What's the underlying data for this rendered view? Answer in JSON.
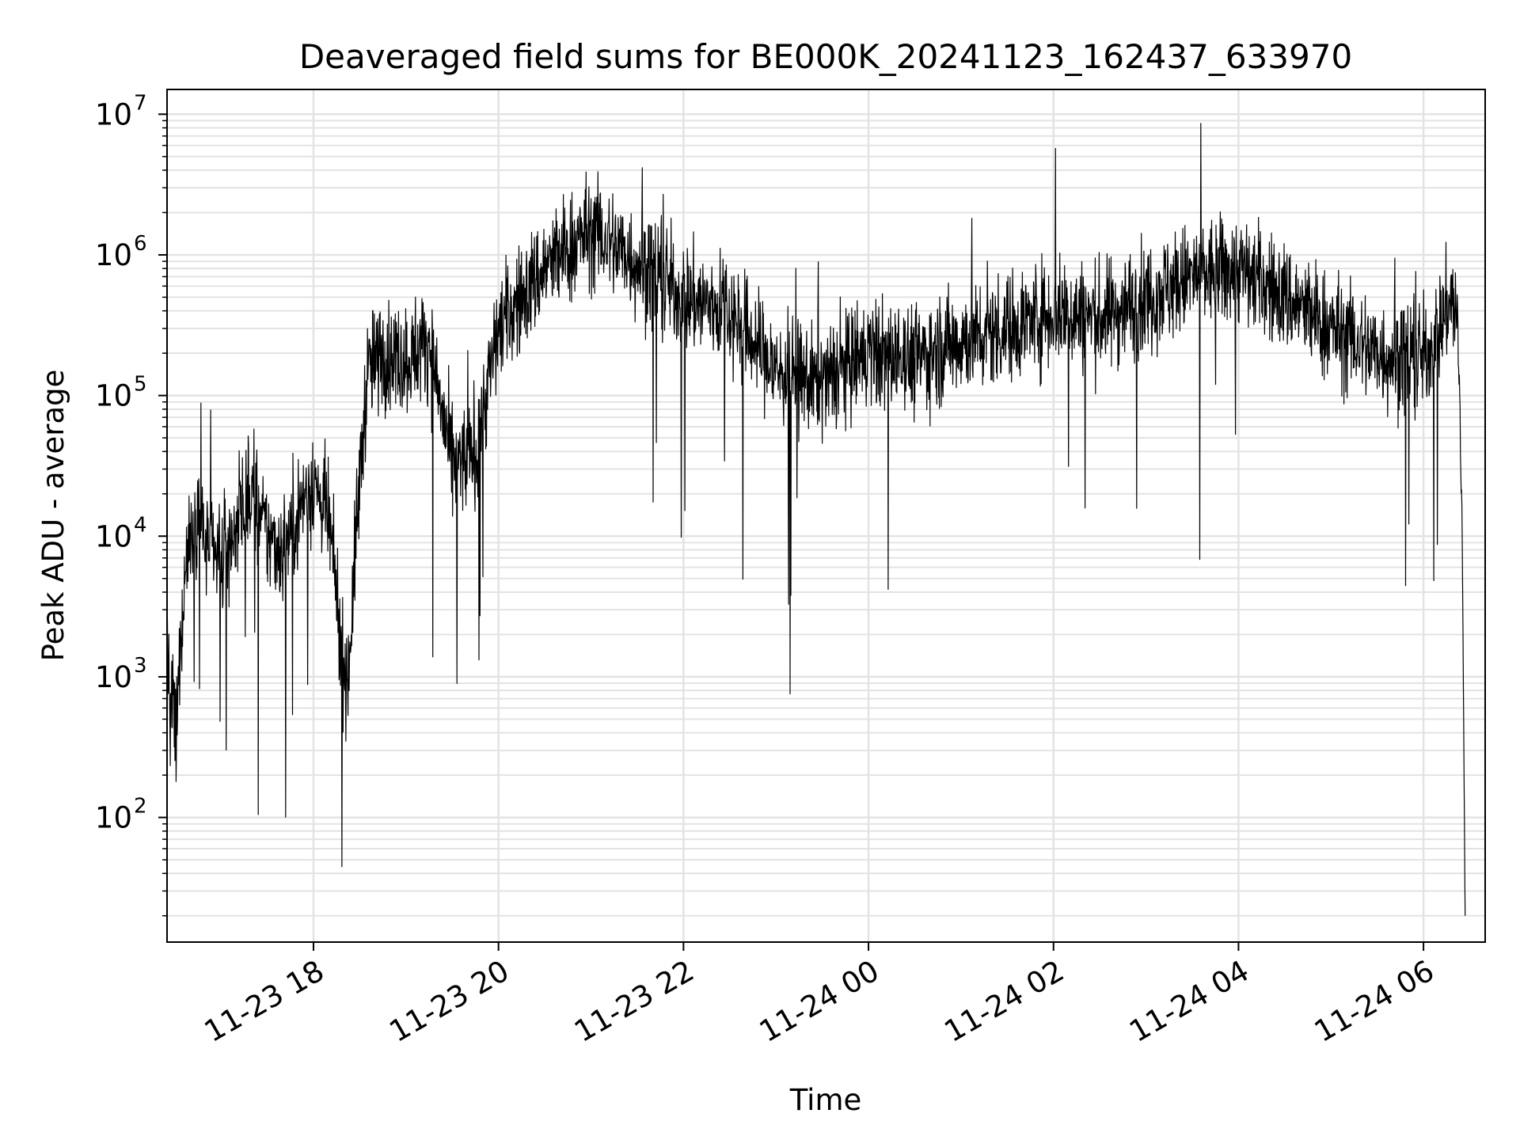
{
  "chart_data": {
    "type": "line",
    "title": "Deaveraged field sums for BE000K_20241123_162437_633970",
    "xlabel": "Time",
    "ylabel": "Peak ADU - average",
    "yscale": "log",
    "xlim": [
      "2024-11-23 16:25",
      "2024-11-24 06:40"
    ],
    "ylim": [
      13,
      15000000
    ],
    "grid": true,
    "colors": {
      "line": "#000000",
      "grid": "#e3e3e3"
    },
    "x_ticks": [
      {
        "value": "2024-11-23 18:00",
        "label": "11-23 18"
      },
      {
        "value": "2024-11-23 20:00",
        "label": "11-23 20"
      },
      {
        "value": "2024-11-23 22:00",
        "label": "11-23 22"
      },
      {
        "value": "2024-11-24 00:00",
        "label": "11-24 00"
      },
      {
        "value": "2024-11-24 02:00",
        "label": "11-24 02"
      },
      {
        "value": "2024-11-24 04:00",
        "label": "11-24 04"
      },
      {
        "value": "2024-11-24 06:00",
        "label": "11-24 06"
      }
    ],
    "y_ticks": [
      {
        "value": 100,
        "base": "10",
        "exp": "2"
      },
      {
        "value": 1000,
        "base": "10",
        "exp": "3"
      },
      {
        "value": 10000,
        "base": "10",
        "exp": "4"
      },
      {
        "value": 100000,
        "base": "10",
        "exp": "5"
      },
      {
        "value": 1000000,
        "base": "10",
        "exp": "6"
      },
      {
        "value": 10000000,
        "base": "10",
        "exp": "7"
      }
    ],
    "series": [
      {
        "x": [
          "2024-11-23 16:25",
          "2024-11-23 16:27",
          "2024-11-23 16:29",
          "2024-11-23 16:31",
          "2024-11-23 16:33",
          "2024-11-23 16:35",
          "2024-11-23 16:38",
          "2024-11-23 16:42",
          "2024-11-23 16:46",
          "2024-11-23 16:50",
          "2024-11-23 16:55",
          "2024-11-23 17:00",
          "2024-11-23 17:10",
          "2024-11-23 17:20",
          "2024-11-23 17:30",
          "2024-11-23 17:40",
          "2024-11-23 17:50",
          "2024-11-23 18:00",
          "2024-11-23 18:10",
          "2024-11-23 18:15",
          "2024-11-23 18:18",
          "2024-11-23 18:22",
          "2024-11-23 18:25",
          "2024-11-23 18:28",
          "2024-11-23 18:35",
          "2024-11-23 18:45",
          "2024-11-23 19:00",
          "2024-11-23 19:15",
          "2024-11-23 19:30",
          "2024-11-23 19:45",
          "2024-11-23 20:00",
          "2024-11-23 20:30",
          "2024-11-23 21:00",
          "2024-11-23 21:30",
          "2024-11-23 22:00",
          "2024-11-23 22:30",
          "2024-11-23 23:00",
          "2024-11-23 23:30",
          "2024-11-24 00:00",
          "2024-11-24 00:30",
          "2024-11-24 01:00",
          "2024-11-24 01:30",
          "2024-11-24 02:00",
          "2024-11-24 02:30",
          "2024-11-24 03:00",
          "2024-11-24 03:30",
          "2024-11-24 04:00",
          "2024-11-24 04:30",
          "2024-11-24 05:00",
          "2024-11-24 05:30",
          "2024-11-24 06:00",
          "2024-11-24 06:10",
          "2024-11-24 06:18",
          "2024-11-24 06:22",
          "2024-11-24 06:25",
          "2024-11-24 06:27"
        ],
        "y": [
          2500,
          400,
          700,
          300,
          1200,
          3000,
          8000,
          12000,
          15000,
          9000,
          8000,
          6000,
          12000,
          20000,
          10000,
          8000,
          15000,
          25000,
          12000,
          4000,
          1500,
          900,
          3000,
          12000,
          150000,
          200000,
          180000,
          250000,
          30000,
          40000,
          300000,
          800000,
          1500000,
          900000,
          500000,
          400000,
          150000,
          120000,
          200000,
          180000,
          250000,
          300000,
          400000,
          350000,
          500000,
          700000,
          800000,
          500000,
          300000,
          200000,
          180000,
          300000,
          500000,
          350000,
          15000,
          20
        ]
      }
    ]
  }
}
